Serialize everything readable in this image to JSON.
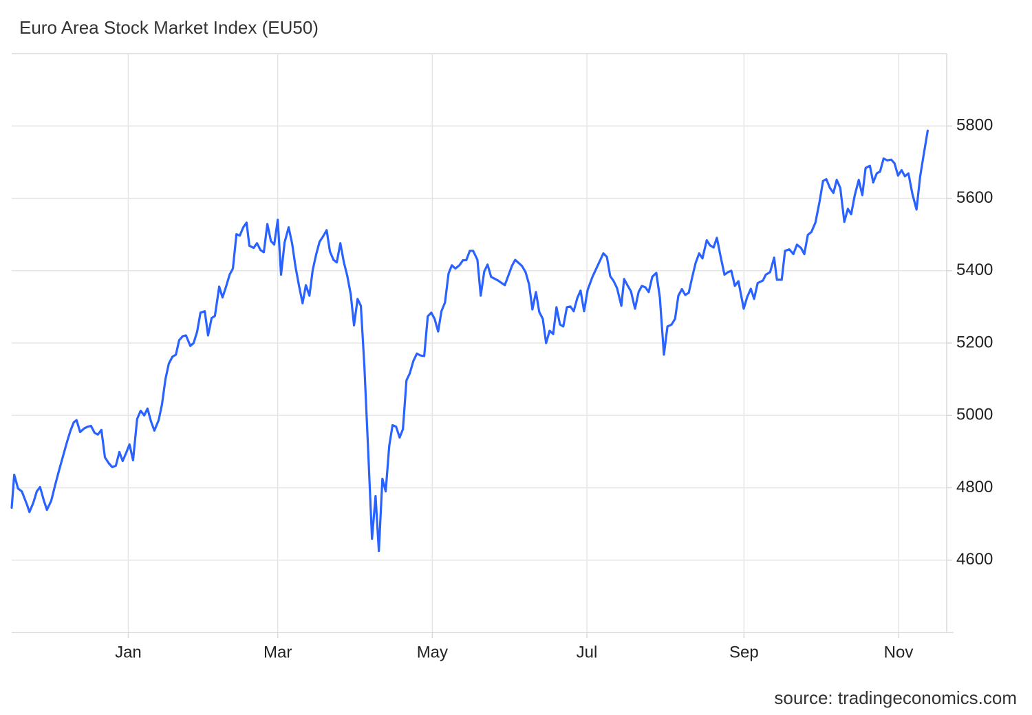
{
  "chart_data": {
    "type": "line",
    "title": "Euro Area Stock Market Index (EU50)",
    "source": "source: tradingeconomics.com",
    "x": [
      -46,
      -45,
      -43.5,
      -42,
      -40,
      -39,
      -37.5,
      -36.1,
      -34.8,
      -33.4,
      -32.1,
      -30.4,
      -28.8,
      -27.2,
      -25.8,
      -24.2,
      -22.8,
      -21.5,
      -20.4,
      -19,
      -17.4,
      -16,
      -14.7,
      -13.3,
      -12,
      -10.6,
      -9.2,
      -7.6,
      -6.3,
      -4.9,
      -3.5,
      -2.2,
      -0.8,
      0.5,
      1.9,
      3.5,
      4.9,
      6.3,
      7.6,
      9,
      10.3,
      12,
      13.3,
      14.7,
      16,
      17.4,
      18.8,
      20.1,
      21.5,
      22.8,
      24.5,
      25.8,
      27.2,
      28.5,
      30.2,
      31.5,
      32.9,
      34.2,
      35.9,
      37.2,
      38.6,
      40,
      41.3,
      42.7,
      44,
      45.4,
      46.7,
      47.8,
      49.5,
      50.8,
      52.2,
      53.5,
      54.9,
      56.3,
      57.6,
      59,
      60.3,
      61.7,
      63.3,
      64.7,
      66,
      67.4,
      68.8,
      70.1,
      71.5,
      72.8,
      74.2,
      75.5,
      76.9,
      78.3,
      79.6,
      81,
      82.3,
      83.7,
      85.1,
      86.4,
      87.8,
      89.1,
      90.5,
      91.8,
      93.2,
      94.6,
      96.2,
      97.6,
      98.9,
      100.3,
      101.6,
      103,
      104.3,
      105.7,
      107.1,
      108.4,
      109.8,
      111.1,
      112.5,
      113.9,
      115.2,
      116.8,
      118.2,
      119.6,
      120.9,
      122.3,
      123.6,
      125,
      126.4,
      127.7,
      129.1,
      130.7,
      132.1,
      133.4,
      134.8,
      136.1,
      137.8,
      139.1,
      140.5,
      141.8,
      143.2,
      145.9,
      148.6,
      151.4,
      152.7,
      155.4,
      156.8,
      158.2,
      159.5,
      160.9,
      162.2,
      163.6,
      164.9,
      166.3,
      167.7,
      169,
      170.4,
      171.7,
      173.1,
      174.5,
      175.8,
      177.2,
      178.5,
      179.9,
      181.3,
      183.2,
      187.5,
      188.9,
      190.2,
      191.6,
      192.9,
      194.6,
      195.7,
      197,
      198.4,
      200,
      201.4,
      202.7,
      204.1,
      205.4,
      206.8,
      208.4,
      209.8,
      211.4,
      212.8,
      214.4,
      215.8,
      217.1,
      218.5,
      219.8,
      221.2,
      222.6,
      223.9,
      225.3,
      226.6,
      228.3,
      229.6,
      231,
      232.3,
      233.7,
      235.3,
      236.7,
      238,
      239.4,
      240.8,
      242.9,
      244.3,
      245.7,
      247,
      248.4,
      250.5,
      251.6,
      253.3,
      254.9,
      256,
      257.9,
      259.2,
      260.9,
      262.5,
      263.9,
      265.5,
      266.8,
      268.2,
      269.6,
      271.2,
      272.8,
      274.2,
      275.5,
      276.9,
      278.3,
      279.6,
      281,
      282.6,
      284,
      285.3,
      286.7,
      288.3,
      289.7,
      291,
      292.7,
      294,
      295.4,
      296.7,
      298.1,
      299.5,
      301.1,
      302.4,
      303.8,
      305.2,
      306.5,
      307.9,
      309.5,
      311.1,
      312.5,
      313.9,
      315.5
    ],
    "values": [
      4745,
      4836,
      4798,
      4790,
      4754,
      4733,
      4758,
      4790,
      4802,
      4767,
      4739,
      4764,
      4809,
      4851,
      4886,
      4926,
      4958,
      4981,
      4987,
      4954,
      4964,
      4969,
      4971,
      4952,
      4947,
      4960,
      4884,
      4867,
      4857,
      4861,
      4899,
      4874,
      4897,
      4920,
      4876,
      4990,
      5013,
      5000,
      5019,
      4983,
      4958,
      4987,
      5030,
      5101,
      5143,
      5162,
      5168,
      5208,
      5219,
      5221,
      5192,
      5200,
      5232,
      5284,
      5288,
      5221,
      5269,
      5275,
      5356,
      5326,
      5356,
      5389,
      5406,
      5501,
      5497,
      5520,
      5533,
      5469,
      5463,
      5476,
      5457,
      5451,
      5529,
      5482,
      5472,
      5541,
      5389,
      5478,
      5520,
      5474,
      5411,
      5358,
      5310,
      5360,
      5331,
      5402,
      5446,
      5480,
      5495,
      5512,
      5453,
      5430,
      5423,
      5476,
      5423,
      5387,
      5335,
      5249,
      5322,
      5303,
      5135,
      4916,
      4659,
      4777,
      4625,
      4825,
      4790,
      4916,
      4973,
      4969,
      4939,
      4962,
      5097,
      5116,
      5150,
      5171,
      5166,
      5164,
      5274,
      5284,
      5267,
      5232,
      5288,
      5312,
      5392,
      5415,
      5406,
      5415,
      5429,
      5429,
      5455,
      5455,
      5430,
      5331,
      5398,
      5417,
      5383,
      5373,
      5360,
      5413,
      5430,
      5413,
      5396,
      5362,
      5293,
      5341,
      5286,
      5267,
      5200,
      5234,
      5225,
      5299,
      5251,
      5246,
      5299,
      5301,
      5288,
      5324,
      5345,
      5288,
      5347,
      5383,
      5448,
      5438,
      5385,
      5371,
      5352,
      5303,
      5377,
      5360,
      5343,
      5295,
      5341,
      5358,
      5354,
      5341,
      5383,
      5394,
      5326,
      5168,
      5246,
      5251,
      5267,
      5331,
      5349,
      5333,
      5339,
      5383,
      5421,
      5448,
      5434,
      5484,
      5470,
      5464,
      5491,
      5442,
      5389,
      5396,
      5400,
      5358,
      5371,
      5295,
      5328,
      5350,
      5322,
      5366,
      5373,
      5389,
      5396,
      5436,
      5375,
      5375,
      5455,
      5459,
      5446,
      5472,
      5463,
      5446,
      5499,
      5507,
      5533,
      5590,
      5648,
      5653,
      5629,
      5615,
      5651,
      5629,
      5535,
      5571,
      5556,
      5608,
      5651,
      5609,
      5684,
      5690,
      5644,
      5669,
      5674,
      5710,
      5705,
      5707,
      5697,
      5663,
      5678,
      5661,
      5669,
      5611,
      5569,
      5659,
      5720,
      5787
    ],
    "color": "#2962ff",
    "xlim": [
      -46,
      323
    ],
    "xticks": [
      {
        "value": 0,
        "label": "Jan"
      },
      {
        "value": 59,
        "label": "Mar"
      },
      {
        "value": 120,
        "label": "May"
      },
      {
        "value": 181,
        "label": "Jul"
      },
      {
        "value": 243,
        "label": "Sep"
      },
      {
        "value": 304,
        "label": "Nov"
      }
    ],
    "ylim": [
      4400,
      6000
    ],
    "yticks": [
      4600,
      4800,
      5000,
      5200,
      5400,
      5600,
      5800
    ],
    "grid": true
  }
}
